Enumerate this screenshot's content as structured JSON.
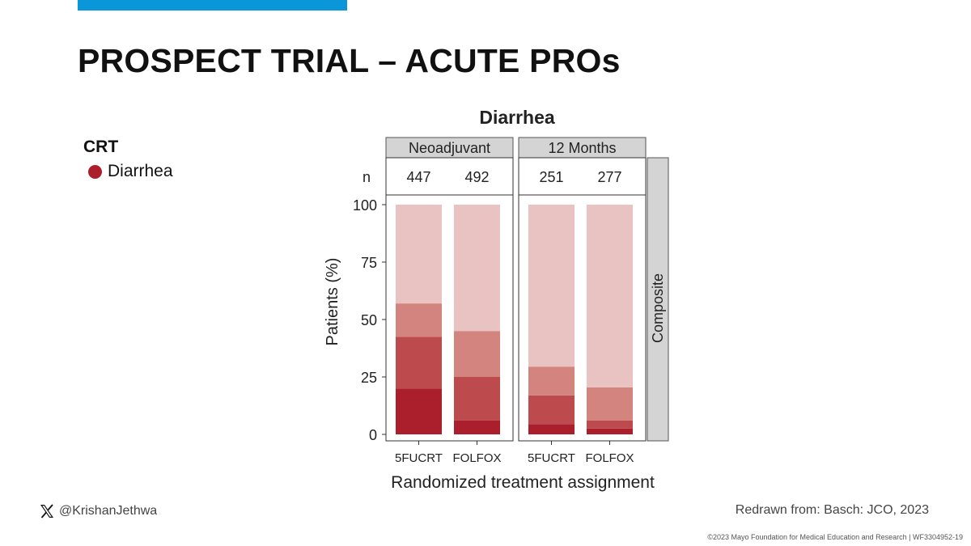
{
  "slide": {
    "title": "PROSPECT TRIAL – ACUTE PROs",
    "accent_color": "#0a96d8"
  },
  "legend": {
    "heading": "CRT",
    "items": [
      {
        "label": "Diarrhea",
        "color": "#ab1e2b"
      }
    ]
  },
  "footer": {
    "handle": "@KrishanJethwa",
    "credit": "Redrawn from: Basch: JCO, 2023",
    "copyright": "©2023 Mayo Foundation for Medical Education and Research  |  WF3304952-19"
  },
  "chart_data": {
    "type": "bar",
    "stacked": true,
    "title": "Diarrhea",
    "xlabel": "Randomized treatment assignment",
    "ylabel": "Patients (%)",
    "ylim": [
      0,
      100
    ],
    "yticks": [
      0,
      25,
      50,
      75,
      100
    ],
    "n_label": "n",
    "strip_right": "Composite",
    "series_colors": [
      "#ab1e2b",
      "#bd4b4e",
      "#d3847e",
      "#e8c3c1"
    ],
    "panels": [
      {
        "name": "Neoadjuvant",
        "categories": [
          "5FUCRT",
          "FOLFOX"
        ],
        "n": [
          "447",
          "492"
        ],
        "stack_tops": [
          [
            20,
            42.5,
            57,
            100
          ],
          [
            6,
            25,
            45,
            100
          ]
        ]
      },
      {
        "name": "12 Months",
        "categories": [
          "5FUCRT",
          "FOLFOX"
        ],
        "n": [
          "251",
          "277"
        ],
        "stack_tops": [
          [
            4.5,
            17,
            29.5,
            100
          ],
          [
            2.5,
            6,
            20.5,
            100
          ]
        ]
      }
    ]
  }
}
